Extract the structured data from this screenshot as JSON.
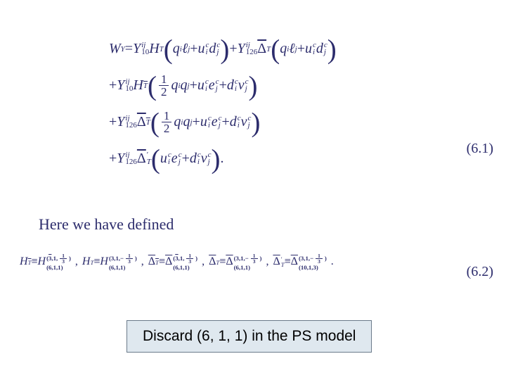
{
  "colors": {
    "math_text": "#2c2c6c",
    "callout_bg": "#dfe8ef",
    "callout_border": "#6a7a8a",
    "page_bg": "#ffffff"
  },
  "equation_1": {
    "number": "(6.1)",
    "rows": [
      {
        "prefix": "W",
        "prefix_sub": "Y",
        "equals": " = ",
        "coeff": "Y",
        "coeff_sub": "10",
        "coeff_sup": "ij",
        "mid": " H",
        "mid_sub": "T",
        "inner": "q_i ℓ_j + u_i^c d_j^c",
        "plus": " + ",
        "coeff2": "Y",
        "coeff2_sub": "126",
        "coeff2_sup": "ij",
        "mid2_bar": "Δ",
        "mid2_sub": "T",
        "inner2": "q_i ℓ_j + u_i^c d_j^c"
      },
      {
        "lead": "+ ",
        "coeff": "Y",
        "coeff_sub": "10",
        "coeff_sup": "ij",
        "mid": " H",
        "mid_sub_bar": "T",
        "inner_frac": "½ q_i q_j + u_i^c e_j^c + d_i^c ν_j^c"
      },
      {
        "lead": "+ ",
        "coeff": "Y",
        "coeff_sub": "126",
        "coeff_sup": "ij",
        "mid_bar": "Δ",
        "mid_sub_bar": "T",
        "inner_frac": "½ q_i q_j + u_i^c e_j^c + d_i^c ν_j^c"
      },
      {
        "lead": "+ ",
        "coeff": "Y",
        "coeff_sub": "126",
        "coeff_sup": "ij",
        "mid_bar": "Δ",
        "mid_sub": "T",
        "mid_prime": "′",
        "inner": "u_i^c e_j^c + d_i^c ν_j^c",
        "tail": " ."
      }
    ]
  },
  "between_text": "Here we have defined",
  "equation_2": {
    "number": "(6.2)",
    "terms": [
      {
        "lhs": "H_T̄",
        "def": "H",
        "rep_top": "(3̄,1,⅓)",
        "rep_bot": "(6,1,1)"
      },
      {
        "lhs": "H_T",
        "def": "H",
        "rep_top": "(3,1,−⅓)",
        "rep_bot": "(6,1,1)"
      },
      {
        "lhs": "Δ̄_T̄",
        "def": "Δ̄",
        "rep_top": "(3̄,1,⅓)",
        "rep_bot": "(6,1,1)"
      },
      {
        "lhs": "Δ̄_T",
        "def": "Δ̄",
        "rep_top": "(3,1,−⅓)",
        "rep_bot": "(6,1,1)"
      },
      {
        "lhs": "Δ̄_T′",
        "def": "Δ̄",
        "rep_top": "(3,1,−⅓)",
        "rep_bot": "(10,1,3)"
      }
    ]
  },
  "callout": "Discard (6, 1, 1) in the PS model"
}
